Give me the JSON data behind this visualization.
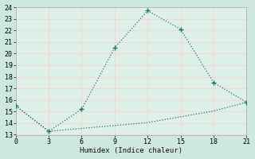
{
  "xlabel": "Humidex (Indice chaleur)",
  "x": [
    0,
    3,
    6,
    9,
    12,
    15,
    18,
    21
  ],
  "y_main": [
    15.5,
    13.3,
    15.2,
    20.5,
    23.7,
    22.1,
    17.5,
    15.8
  ],
  "y_baseline": [
    15.5,
    13.3,
    13.55,
    13.8,
    14.05,
    14.55,
    15.05,
    15.8
  ],
  "line_color": "#1a7a6a",
  "bg_color": "#cce8e0",
  "plot_bg_color": "#dff0e8",
  "grid_color": "#f0d8d8",
  "xlim": [
    0,
    21
  ],
  "ylim": [
    13,
    24
  ],
  "xticks": [
    0,
    3,
    6,
    9,
    12,
    15,
    18,
    21
  ],
  "yticks": [
    13,
    14,
    15,
    16,
    17,
    18,
    19,
    20,
    21,
    22,
    23,
    24
  ]
}
